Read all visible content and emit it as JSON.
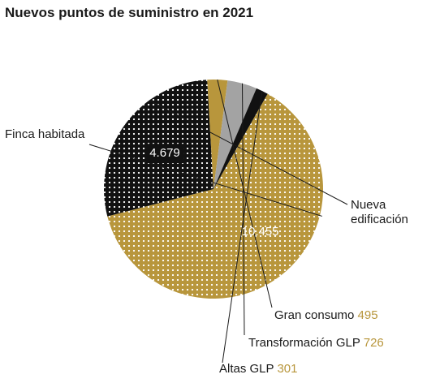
{
  "chart_data": {
    "type": "pie",
    "title": "Nuevos puntos de suministro en 2021",
    "slices": [
      {
        "label": "Finca habitada",
        "value": 10455,
        "value_label": "10.455",
        "color": "#b8963c",
        "pattern": "dots-white"
      },
      {
        "label": "Nueva edificación",
        "label_lines": [
          "Nueva",
          "edificación"
        ],
        "value": 4679,
        "value_label": "4.679",
        "color": "#111111",
        "pattern": "dots-white"
      },
      {
        "label": "Gran consumo",
        "value": 495,
        "value_label": "495",
        "color": "#b8963c"
      },
      {
        "label": "Transformación GLP",
        "value": 726,
        "value_label": "726",
        "color": "#a3a3a3"
      },
      {
        "label": "Altas GLP",
        "value": 301,
        "value_label": "301",
        "color": "#111111"
      }
    ],
    "value_label_color": "#b8963c",
    "legend": "none"
  }
}
